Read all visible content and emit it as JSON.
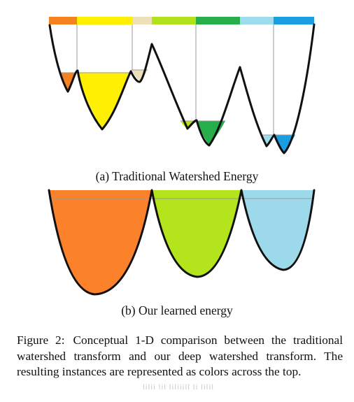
{
  "panel_a": {
    "caption": "(a) Traditional Watershed Energy",
    "colors": {
      "orange": "#f58220",
      "yellow": "#ffef00",
      "beige": "#ede0b8",
      "lime": "#b2e21c",
      "green": "#27ad4a",
      "light_blue": "#9edbec",
      "blue": "#1b9de2"
    },
    "top_bar_colors": [
      "#f58220",
      "#ffef00",
      "#ede0b8",
      "#b2e21c",
      "#27ad4a",
      "#9edbec",
      "#1b9de2"
    ]
  },
  "panel_b": {
    "caption": "(b) Our learned energy",
    "colors": {
      "orange": "#fc812b",
      "lime": "#b4e41b",
      "light_blue": "#9cd9ea"
    }
  },
  "figure_caption": {
    "label": "Figure 2:",
    "text": "Conceptual 1-D comparison between the traditional watershed transform and our deep watershed transform. The resulting instances are represented as colors across the top."
  }
}
